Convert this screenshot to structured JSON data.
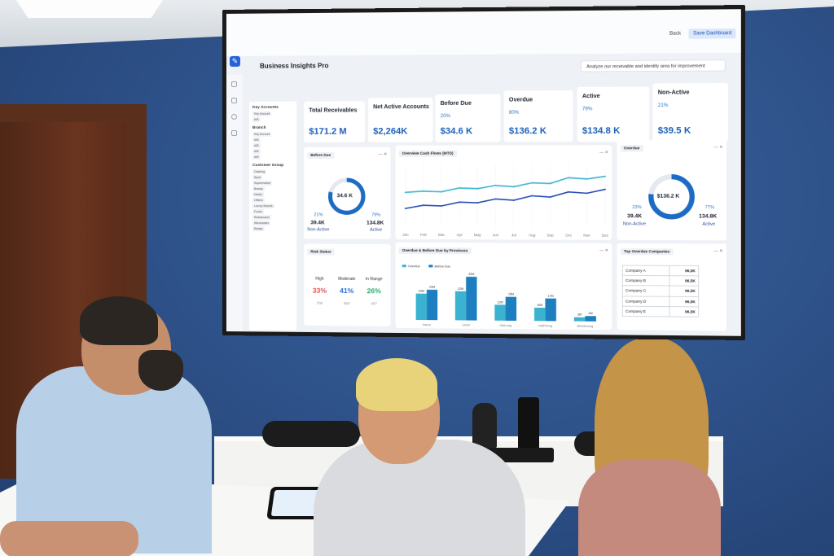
{
  "app": {
    "title": "Business Insights Pro",
    "back_label": "Back",
    "save_label": "Save Dashboard",
    "analyze_text": "Analyze our receivable and identify area for improvement",
    "accent": "#2563d6"
  },
  "filters": {
    "key_accounts": {
      "title": "Key Accounts",
      "items": [
        "Key Account",
        "A/B"
      ]
    },
    "branch": {
      "title": "Branch",
      "items": [
        "Key Account",
        "A/B",
        "A/B",
        "A/B",
        "A/B"
      ]
    },
    "customer_group": {
      "title": "Customer Group",
      "items": [
        "Catering",
        "Sport",
        "Supermarket",
        "Beauty",
        "Hotels",
        "Offices",
        "Luxury Brands",
        "Foods",
        "Restaurants",
        "Wholesales",
        "Retails"
      ]
    }
  },
  "kpis": [
    {
      "label": "Total Receivables",
      "pct": "",
      "value": "$171.2 M"
    },
    {
      "label": "Net Active Accounts",
      "pct": "",
      "value": "$2,264K"
    },
    {
      "label": "Before Due",
      "pct": "20%",
      "value": "$34.6 K"
    },
    {
      "label": "Overdue",
      "pct": "80%",
      "value": "$136.2 K"
    },
    {
      "label": "Active",
      "pct": "79%",
      "value": "$134.8 K"
    },
    {
      "label": "Non-Active",
      "pct": "21%",
      "value": "$39.5 K"
    }
  ],
  "before_due_card": {
    "title": "Before Due",
    "center": "34.6 K",
    "ring_fraction": 0.79,
    "left_pct": "21%",
    "left_val": "39.4K",
    "left_lbl": "Non-Active",
    "right_pct": "79%",
    "right_val": "134.8K",
    "right_lbl": "Active"
  },
  "overdue_card": {
    "title": "Overdue",
    "center": "$136.2 K",
    "ring_fraction": 0.77,
    "left_pct": "23%",
    "left_val": "39.4K",
    "left_lbl": "Non-Active",
    "right_pct": "77%",
    "right_val": "134.8K",
    "right_lbl": "Active"
  },
  "cashflow_card": {
    "title": "Overview Cash Flows (MTD)"
  },
  "chart_data": [
    {
      "type": "line",
      "title": "Overview Cash Flows (MTD)",
      "x": [
        "Jan",
        "Feb",
        "Mar",
        "Apr",
        "May",
        "Jun",
        "Jul",
        "Aug",
        "Sep",
        "Oct",
        "Nov",
        "Dec"
      ],
      "series": [
        {
          "color": "#3bb3d0",
          "values": [
            55,
            57,
            56,
            62,
            61,
            66,
            64,
            70,
            69,
            78,
            76,
            80
          ]
        },
        {
          "color": "#2a4fb6",
          "values": [
            30,
            35,
            34,
            40,
            39,
            45,
            43,
            50,
            48,
            56,
            54,
            60
          ]
        }
      ],
      "ylim": [
        0,
        100
      ]
    },
    {
      "type": "bar",
      "title": "Overdue & Before Due by Provinces",
      "categories": [
        "Hanoi",
        "HCM",
        "GiaLong",
        "HaiPhong",
        "BinhDuong"
      ],
      "series": [
        {
          "name": "Overdue",
          "color": "#3bb3d0",
          "values": [
            20,
            22,
            12,
            10,
            3
          ]
        },
        {
          "name": "Before Due",
          "color": "#1d7fc0",
          "values": [
            23,
            33,
            18,
            17,
            4
          ]
        }
      ],
      "data_labels_overdue": [
        "20M",
        "22M",
        "12M",
        "10M",
        "3M"
      ],
      "data_labels_before": [
        "23M",
        "33M",
        "18M",
        "17M",
        "4M"
      ],
      "ylim": [
        0,
        40
      ]
    }
  ],
  "risk_card": {
    "title": "Risk Status",
    "cols": [
      {
        "name": "High",
        "pct": "33%",
        "num": "708",
        "color": "#e05353"
      },
      {
        "name": "Moderate",
        "pct": "41%",
        "num": "950",
        "color": "#2a6fd6"
      },
      {
        "name": "In Range",
        "pct": "26%",
        "num": "487",
        "color": "#2aa876"
      }
    ]
  },
  "provinces_card": {
    "title": "Overdue & Before Due by Provinces",
    "legend": [
      "Overdue",
      "Before Due"
    ]
  },
  "companies_card": {
    "title": "Top Overdue Companies",
    "rows": [
      {
        "name": "Company A",
        "value": "96,5K"
      },
      {
        "name": "Company B",
        "value": "96,5K"
      },
      {
        "name": "Company C",
        "value": "96,5K"
      },
      {
        "name": "Company D",
        "value": "96,5K"
      },
      {
        "name": "Company E",
        "value": "96,5K"
      }
    ]
  }
}
